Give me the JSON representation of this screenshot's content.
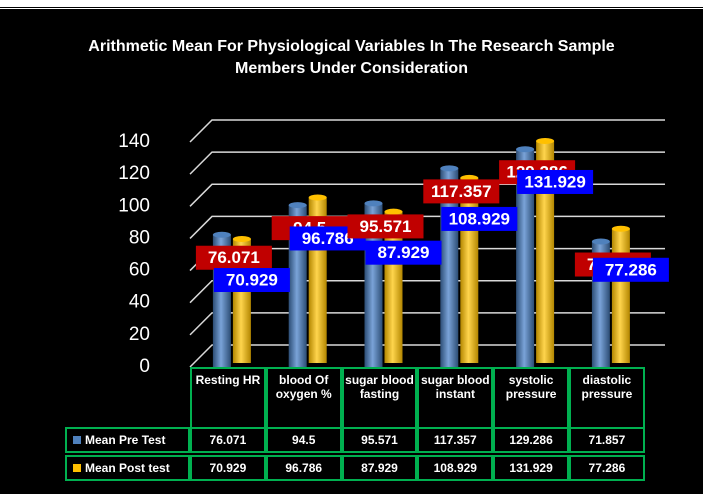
{
  "chart_data": {
    "type": "bar3d",
    "title": "Arithmetic Mean For Physiological Variables In The Research Sample Members Under Consideration",
    "categories": [
      "Resting HR",
      "blood Of oxygen %",
      "sugar blood fasting",
      "sugar blood instant",
      "systolic pressure",
      "diastolic pressure"
    ],
    "series": [
      {
        "name": "Mean Pre Test",
        "color": "#4f81bd",
        "label_color": "#c00000",
        "values": [
          76.071,
          94.5,
          95.571,
          117.357,
          129.286,
          71.857
        ]
      },
      {
        "name": "Mean Post test",
        "color": "#ffc000",
        "label_color": "#0000ff",
        "values": [
          70.929,
          96.786,
          87.929,
          108.929,
          131.929,
          77.286
        ]
      }
    ],
    "ylim": [
      0,
      140
    ],
    "yticks": [
      0,
      20,
      40,
      60,
      80,
      100,
      120,
      140
    ],
    "grid": true
  }
}
